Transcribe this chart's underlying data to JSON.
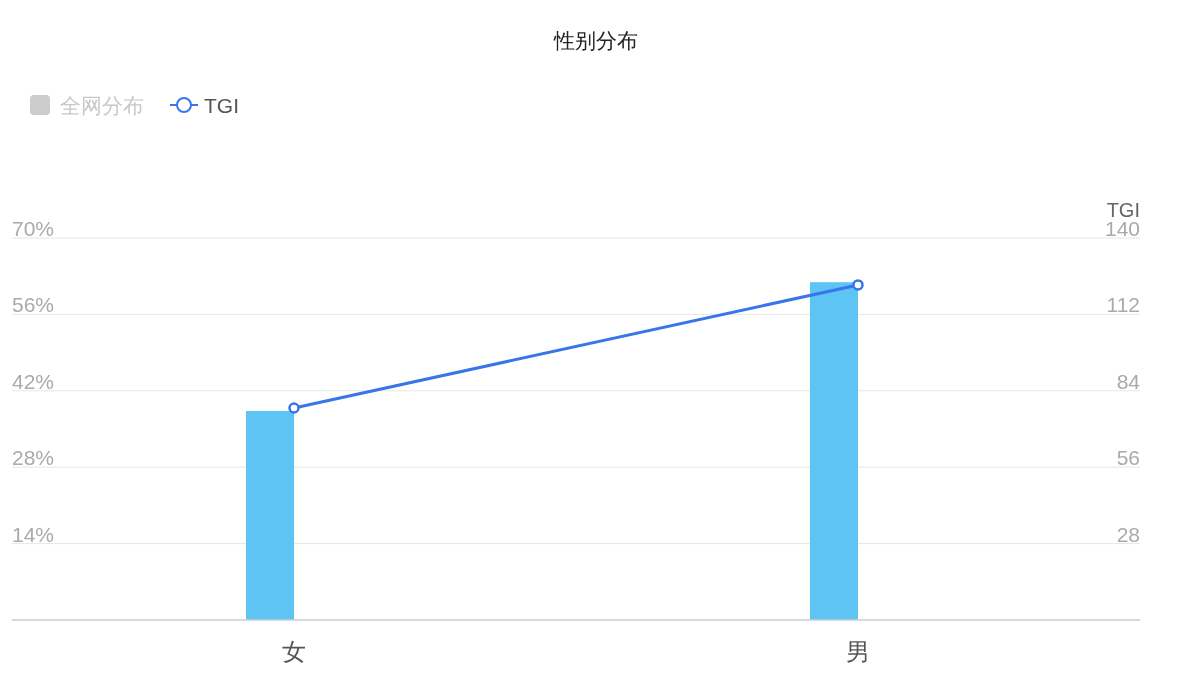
{
  "chart_data": {
    "type": "bar",
    "title": "性别分布",
    "categories": [
      "女",
      "男"
    ],
    "series": [
      {
        "color": "#5ec4f3",
        "values": [
          38.3,
          61.9
        ]
      },
      {
        "name": "全网分布",
        "color": "#cccccc",
        "values": [
          null,
          null
        ]
      },
      {
        "type": "line",
        "name": "TGI",
        "color": "#3875e8",
        "axis": "y2",
        "values": [
          77.7,
          122.8
        ]
      }
    ],
    "ylim": [
      0,
      70
    ],
    "yticks": [
      {
        "value": 0,
        "label": null
      },
      {
        "value": 14,
        "label": "14%"
      },
      {
        "value": 28,
        "label": "28%"
      },
      {
        "value": 42,
        "label": "42%"
      },
      {
        "value": 56,
        "label": "56%"
      },
      {
        "value": 70,
        "label": "70%"
      }
    ],
    "y2lim": [
      0,
      140
    ],
    "y2ticks": [
      28,
      56,
      84,
      112,
      140
    ],
    "y2label": "TGI",
    "grid": "y",
    "legend": "top left",
    "marker": "circle"
  }
}
